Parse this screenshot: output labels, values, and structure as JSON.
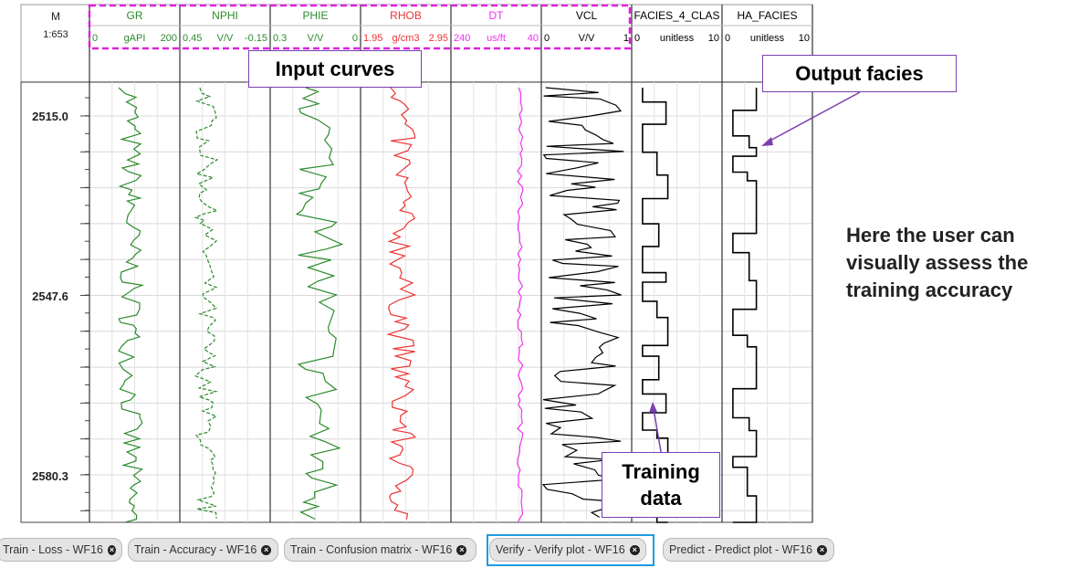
{
  "depth_track": {
    "unit": "M",
    "scale": "1:653",
    "depth_labels": [
      "2515.0",
      "2547.6",
      "2580.3"
    ]
  },
  "tracks": [
    {
      "name": "GR",
      "min": "0",
      "unit": "gAPI",
      "max": "200",
      "color": "#2e8b2e"
    },
    {
      "name": "NPHI",
      "min": "0.45",
      "unit": "V/V",
      "max": "-0.15",
      "color": "#2e8b2e"
    },
    {
      "name": "PHIE",
      "min": "0.3",
      "unit": "V/V",
      "max": "0",
      "color": "#2e8b2e"
    },
    {
      "name": "RHOB",
      "min": "1.95",
      "unit": "g/cm3",
      "max": "2.95",
      "color": "#ee3333"
    },
    {
      "name": "DT",
      "min": "240",
      "unit": "us/ft",
      "max": "40",
      "color": "#ee33ee"
    },
    {
      "name": "VCL",
      "min": "0",
      "unit": "V/V",
      "max": "1",
      "color": "#000000"
    },
    {
      "name": "FACIES_4_CLAS",
      "min": "0",
      "unit": "unitless",
      "max": "10",
      "color": "#000000"
    },
    {
      "name": "HA_FACIES",
      "min": "0",
      "unit": "unitless",
      "max": "10",
      "color": "#000000"
    }
  ],
  "annotations": {
    "input_curves": "Input curves",
    "output_facies": "Output facies",
    "training_data_line1": "Training",
    "training_data_line2": "data",
    "note_line1": "Here the user can",
    "note_line2": "visually assess the",
    "note_line3": "training accuracy"
  },
  "tabs": [
    {
      "label": "Train - Loss - WF16",
      "selected": false
    },
    {
      "label": "Train - Accuracy - WF16",
      "selected": false
    },
    {
      "label": "Train - Confusion matrix - WF16",
      "selected": false
    },
    {
      "label": "Verify - Verify plot - WF16",
      "selected": true
    },
    {
      "label": "Predict - Predict plot - WF16",
      "selected": false
    }
  ],
  "colors": {
    "input_box": "#dd22dd",
    "callout_border": "#7b3fb0",
    "selected_tab": "#1e9be0"
  }
}
